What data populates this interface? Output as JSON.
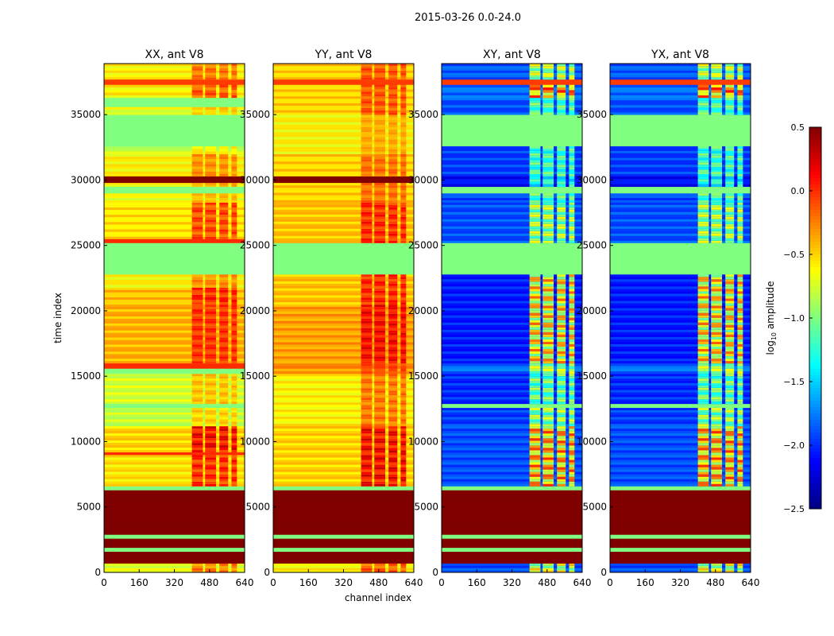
{
  "chart_data": {
    "type": "heatmap",
    "title": "2015-03-26 0.0-24.0",
    "xlabel": "channel index",
    "ylabel": "time index",
    "xlim": [
      0,
      640
    ],
    "ylim": [
      0,
      38900
    ],
    "xticks": [
      "0",
      "160",
      "320",
      "480",
      "640"
    ],
    "xtick_values": [
      0,
      160,
      320,
      480,
      640
    ],
    "yticks": [
      "0",
      "5000",
      "10000",
      "15000",
      "20000",
      "25000",
      "30000",
      "35000"
    ],
    "ytick_values": [
      0,
      5000,
      10000,
      15000,
      20000,
      25000,
      30000,
      35000
    ],
    "colorbar": {
      "label": "log10 amplitude",
      "label_main": "log",
      "label_sub": "10",
      "label_rest": " amplitude",
      "colormap": "jet",
      "range": [
        -2.5,
        0.5
      ],
      "ticks": [
        "0.5",
        "0.0",
        "−0.5",
        "−1.0",
        "−1.5",
        "−2.0",
        "−2.5"
      ],
      "tick_values": [
        0.5,
        0.0,
        -0.5,
        -1.0,
        -1.5,
        -2.0,
        -2.5
      ]
    },
    "hot_channel_blocks": [
      [
        400,
        450
      ],
      [
        460,
        510
      ],
      [
        525,
        565
      ],
      [
        580,
        605
      ]
    ],
    "panels": [
      {
        "title": "XX, ant V8",
        "bands": [
          [
            0,
            700,
            -0.7,
            0.6
          ],
          [
            700,
            1600,
            0.5,
            0
          ],
          [
            1600,
            1900,
            -1.0,
            0
          ],
          [
            1900,
            2600,
            0.5,
            0
          ],
          [
            2600,
            2900,
            -1.0,
            0
          ],
          [
            2900,
            6300,
            0.5,
            0
          ],
          [
            6300,
            6600,
            -1.0,
            0
          ],
          [
            6600,
            9000,
            -0.55,
            0.7
          ],
          [
            9000,
            9200,
            0.0,
            0
          ],
          [
            9200,
            11200,
            -0.5,
            0.8
          ],
          [
            11200,
            12600,
            -0.8,
            0.4
          ],
          [
            12600,
            12900,
            -1.0,
            0
          ],
          [
            12900,
            15200,
            -0.75,
            0.4
          ],
          [
            15200,
            15600,
            -1.0,
            0
          ],
          [
            15600,
            16000,
            0.0,
            0
          ],
          [
            16000,
            20500,
            -0.4,
            0.5
          ],
          [
            20500,
            21800,
            -0.45,
            0.6
          ],
          [
            21800,
            22800,
            -0.6,
            0.4
          ],
          [
            22800,
            25200,
            -1.0,
            0
          ],
          [
            25200,
            25500,
            0.0,
            0
          ],
          [
            25500,
            28300,
            -0.55,
            0.6
          ],
          [
            28300,
            29000,
            -0.65,
            0.3
          ],
          [
            29000,
            29500,
            -1.0,
            0
          ],
          [
            29500,
            29800,
            -0.6,
            0.3
          ],
          [
            29800,
            30300,
            0.5,
            0
          ],
          [
            30300,
            32000,
            -0.6,
            0.4
          ],
          [
            32000,
            32600,
            -0.8,
            0.3
          ],
          [
            32600,
            35000,
            -1.0,
            0
          ],
          [
            35000,
            35600,
            -0.7,
            0.3
          ],
          [
            35600,
            36300,
            -1.0,
            0
          ],
          [
            36300,
            37300,
            -0.6,
            0.6
          ],
          [
            37300,
            37700,
            -0.05,
            0
          ],
          [
            37700,
            38900,
            -0.6,
            0.5
          ]
        ]
      },
      {
        "title": "YY, ant V8",
        "bands": [
          [
            0,
            700,
            -0.6,
            0.6
          ],
          [
            700,
            1600,
            0.5,
            0
          ],
          [
            1600,
            1900,
            -1.0,
            0
          ],
          [
            1900,
            2600,
            0.5,
            0
          ],
          [
            2600,
            2900,
            -1.0,
            0
          ],
          [
            2900,
            6300,
            0.5,
            0
          ],
          [
            6300,
            6600,
            -1.0,
            0
          ],
          [
            6600,
            11200,
            -0.5,
            0.8
          ],
          [
            11200,
            15200,
            -0.6,
            0.5
          ],
          [
            15200,
            16000,
            -0.3,
            0.3
          ],
          [
            16000,
            20500,
            -0.35,
            0.6
          ],
          [
            20500,
            22800,
            -0.45,
            0.6
          ],
          [
            22800,
            25200,
            -1.0,
            0
          ],
          [
            25200,
            28300,
            -0.45,
            0.6
          ],
          [
            28300,
            29800,
            -0.5,
            0.4
          ],
          [
            29800,
            30300,
            0.5,
            0
          ],
          [
            30300,
            32000,
            -0.5,
            0.4
          ],
          [
            32000,
            35000,
            -0.6,
            0.3
          ],
          [
            35000,
            37300,
            -0.5,
            0.5
          ],
          [
            37300,
            37700,
            -0.05,
            0
          ],
          [
            37700,
            38900,
            -0.5,
            0.5
          ]
        ]
      },
      {
        "title": "XY, ant V8",
        "bands": [
          [
            0,
            700,
            -1.9,
            1.5
          ],
          [
            700,
            1600,
            0.5,
            0
          ],
          [
            1600,
            1900,
            -1.0,
            0
          ],
          [
            1900,
            2600,
            0.5,
            0
          ],
          [
            2600,
            2900,
            -1.0,
            0
          ],
          [
            2900,
            6300,
            0.5,
            0
          ],
          [
            6300,
            6600,
            -1.0,
            0
          ],
          [
            6600,
            11200,
            -1.9,
            1.9
          ],
          [
            11200,
            12600,
            -1.95,
            1.3
          ],
          [
            12600,
            12900,
            -1.0,
            0
          ],
          [
            12900,
            15200,
            -2.0,
            1.2
          ],
          [
            15200,
            16000,
            -1.8,
            1.2
          ],
          [
            16000,
            22800,
            -2.05,
            1.9
          ],
          [
            22800,
            25200,
            -1.0,
            0
          ],
          [
            25200,
            28300,
            -1.9,
            1.3
          ],
          [
            28300,
            29000,
            -1.9,
            1.0
          ],
          [
            29000,
            29500,
            -1.0,
            0
          ],
          [
            29500,
            30300,
            -2.1,
            1.0
          ],
          [
            30300,
            32600,
            -1.95,
            1.0
          ],
          [
            32600,
            35000,
            -1.0,
            0
          ],
          [
            35000,
            36300,
            -1.9,
            1.0
          ],
          [
            36300,
            37300,
            -1.8,
            1.9
          ],
          [
            37300,
            37700,
            -0.05,
            0
          ],
          [
            37700,
            38900,
            -1.85,
            1.3
          ]
        ]
      },
      {
        "title": "YX, ant V8",
        "bands": [
          [
            0,
            700,
            -1.9,
            1.5
          ],
          [
            700,
            1600,
            0.5,
            0
          ],
          [
            1600,
            1900,
            -1.0,
            0
          ],
          [
            1900,
            2600,
            0.5,
            0
          ],
          [
            2600,
            2900,
            -1.0,
            0
          ],
          [
            2900,
            6300,
            0.5,
            0
          ],
          [
            6300,
            6600,
            -1.0,
            0
          ],
          [
            6600,
            11200,
            -1.9,
            1.9
          ],
          [
            11200,
            12600,
            -1.95,
            1.3
          ],
          [
            12600,
            12900,
            -1.0,
            0
          ],
          [
            12900,
            15200,
            -2.0,
            1.2
          ],
          [
            15200,
            16000,
            -1.8,
            1.2
          ],
          [
            16000,
            22800,
            -2.05,
            1.9
          ],
          [
            22800,
            25200,
            -1.0,
            0
          ],
          [
            25200,
            28300,
            -1.9,
            1.3
          ],
          [
            28300,
            29000,
            -1.9,
            1.0
          ],
          [
            29000,
            29500,
            -1.0,
            0
          ],
          [
            29500,
            30300,
            -2.1,
            1.0
          ],
          [
            30300,
            32600,
            -1.95,
            1.0
          ],
          [
            32600,
            35000,
            -1.0,
            0
          ],
          [
            35000,
            36300,
            -1.9,
            1.0
          ],
          [
            36300,
            37300,
            -1.8,
            1.9
          ],
          [
            37300,
            37700,
            -0.05,
            0
          ],
          [
            37700,
            38900,
            -1.85,
            1.3
          ]
        ]
      }
    ]
  }
}
